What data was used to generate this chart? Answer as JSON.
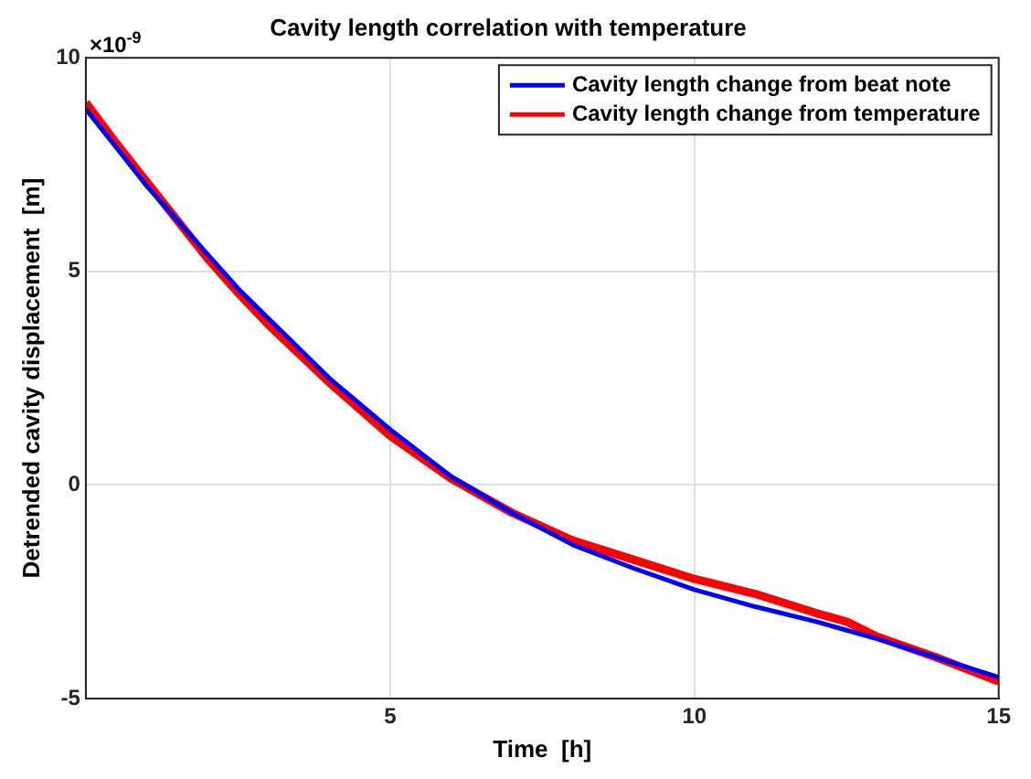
{
  "chart_data": {
    "type": "line",
    "title": "Cavity length correlation with temperature",
    "xlabel": "Time  [h]",
    "ylabel": "Detrended cavity displacement  [m]",
    "annotations": [
      "×10$^{-9}$"
    ],
    "x": [
      0,
      0.5,
      1,
      1.5,
      2,
      2.5,
      3,
      4,
      5,
      6,
      7,
      8,
      9,
      10,
      11,
      12,
      12.5,
      13,
      14,
      15
    ],
    "series": [
      {
        "name": "Cavity length change from beat note",
        "color": "#0000ff",
        "values": [
          8.8,
          7.9,
          7.0,
          6.2,
          5.4,
          4.6,
          3.9,
          2.5,
          1.3,
          0.2,
          -0.65,
          -1.4,
          -1.95,
          -2.45,
          -2.85,
          -3.2,
          -3.4,
          -3.6,
          -4.05,
          -4.5
        ]
      },
      {
        "name": "Cavity length change from temperature",
        "color": "#ff0000",
        "values": [
          8.95,
          8.0,
          7.1,
          6.2,
          5.3,
          4.5,
          3.75,
          2.4,
          1.15,
          0.15,
          -0.65,
          -1.3,
          -1.75,
          -2.2,
          -2.55,
          -3.0,
          -3.2,
          -3.55,
          -4.05,
          -4.6
        ]
      }
    ],
    "xlim": [
      0,
      15
    ],
    "xticks": [
      {
        "value": 0,
        "label": null
      },
      5,
      10,
      15
    ],
    "ylim": [
      -5,
      10
    ],
    "yticks": [
      -5,
      0,
      5,
      10
    ],
    "grid": true,
    "legend": "top right",
    "marker": "none",
    "line_style": "solid"
  }
}
